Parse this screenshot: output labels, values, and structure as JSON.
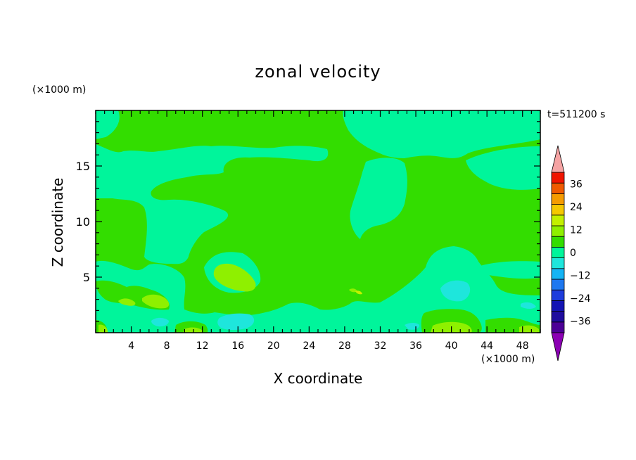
{
  "chart_data": {
    "type": "heatmap",
    "title": "zonal velocity",
    "xlabel": "X coordinate",
    "ylabel": "Z coordinate",
    "x_unit": "(×1000 m)",
    "y_unit": "(×1000 m)",
    "time_label": "t=511200 s",
    "xlim": [
      0,
      50
    ],
    "ylim": [
      0,
      20
    ],
    "x_ticks": [
      4,
      8,
      12,
      16,
      20,
      24,
      28,
      32,
      36,
      40,
      44,
      48
    ],
    "y_ticks": [
      5,
      10,
      15
    ],
    "colorbar": {
      "levels": [
        -42,
        -36,
        -30,
        -24,
        -18,
        -12,
        -6,
        0,
        6,
        12,
        18,
        24,
        30,
        36,
        42
      ],
      "tick_labels": [
        36,
        24,
        12,
        0,
        -12,
        -24,
        -36
      ],
      "colors": [
        "#4c0096",
        "#1f0c9e",
        "#1414b4",
        "#1e3cdc",
        "#1e78f0",
        "#14b4f5",
        "#1ee6dc",
        "#00f59b",
        "#33dd00",
        "#8ff000",
        "#c3f000",
        "#f5c800",
        "#f59b00",
        "#f05a00",
        "#f01400",
        "#f5a3a3"
      ],
      "under_color": "#8c00b4",
      "over_color": "#f5a3a3",
      "extend": "both"
    },
    "grid": false,
    "field_description": "mostly near-zero velocities: 0 to 6 (light green) and -6 to 0 (aquamarine), with small patches of 6 to 12 and -12 to -6"
  }
}
